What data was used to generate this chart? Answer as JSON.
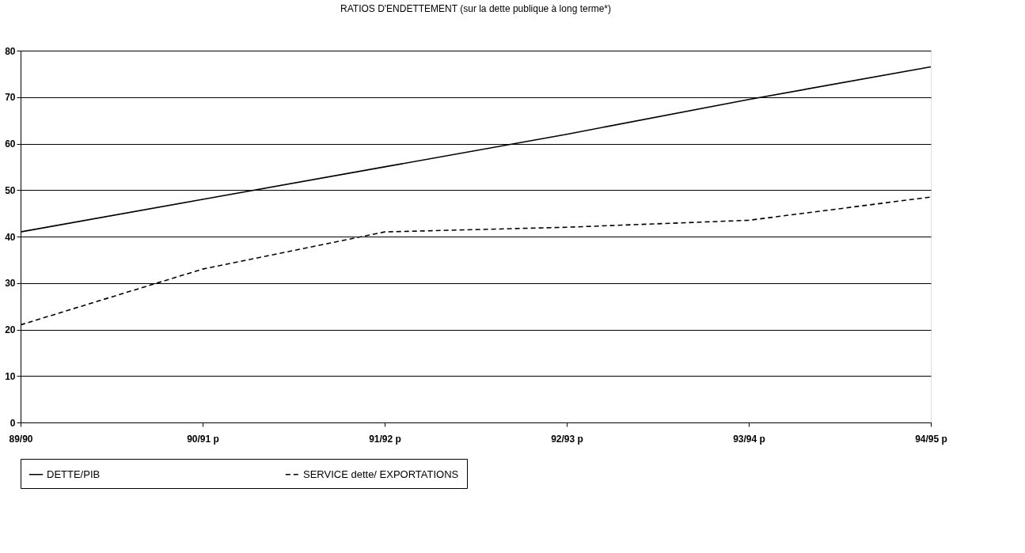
{
  "chart_data": {
    "type": "line",
    "title": "RATIOS D'ENDETTEMENT  (sur la dette publique à long terme*)",
    "categories": [
      "89/90",
      "90/91 p",
      "91/92 p",
      "92/93 p",
      "93/94 p",
      "94/95 p"
    ],
    "series": [
      {
        "name": "DETTE/PIB",
        "color": "#000000",
        "line_style": "solid",
        "values": [
          41,
          48,
          55,
          62,
          69.5,
          76.5
        ]
      },
      {
        "name": "SERVICE dette/ EXPORTATIONS",
        "color": "#000000",
        "line_style": "dashed",
        "values": [
          21,
          33,
          41,
          42,
          43.5,
          48.5
        ]
      }
    ],
    "ylim": [
      0,
      80
    ],
    "yticks": [
      0,
      10,
      20,
      30,
      40,
      50,
      60,
      70,
      80
    ],
    "grid": "y",
    "legend": "bottom",
    "marker": "none"
  }
}
